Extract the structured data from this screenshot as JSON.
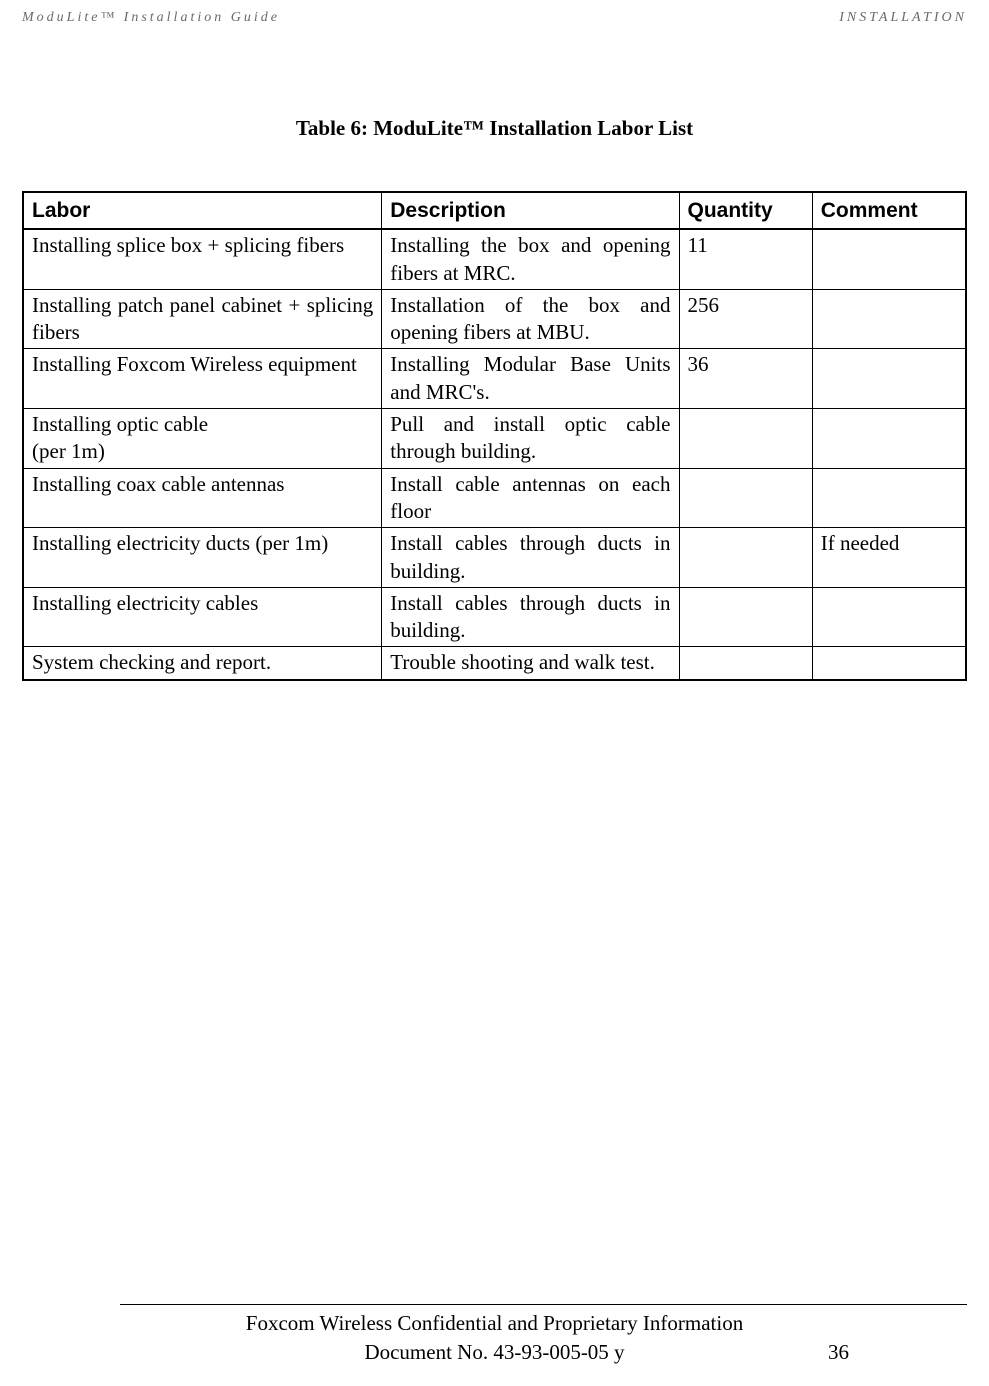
{
  "header": {
    "left": "ModuLite™ Installation Guide",
    "right": "INSTALLATION"
  },
  "caption": "Table 6: ModuLite™ Installation Labor List",
  "table": {
    "headers": {
      "labor": "Labor",
      "description": "Description",
      "quantity": "Quantity",
      "comment": "Comment"
    },
    "rows": [
      {
        "labor": "Installing splice box + splicing fibers",
        "description": "Installing the box and opening fibers at MRC.",
        "quantity": "11",
        "comment": ""
      },
      {
        "labor": "Installing patch panel cabinet + splicing fibers",
        "description": "Installation of the box and opening fibers at MBU.",
        "quantity": "256",
        "comment": ""
      },
      {
        "labor": "Installing Foxcom Wireless equipment",
        "description": "Installing Modular Base Units and  MRC's.",
        "quantity": "36",
        "comment": ""
      },
      {
        "labor": "Installing optic cable\n(per 1m)",
        "description": "Pull and install optic cable through building.",
        "quantity": "",
        "comment": ""
      },
      {
        "labor": "Installing coax cable antennas",
        "description": "Install cable antennas on each floor",
        "quantity": "",
        "comment": ""
      },
      {
        "labor": "Installing electricity ducts  (per 1m)",
        "description": "Install cables through ducts in building.",
        "quantity": "",
        "comment": "If needed"
      },
      {
        "labor": "Installing electricity cables",
        "description": "Install cables through ducts in building.",
        "quantity": "",
        "comment": ""
      },
      {
        "labor": "System checking and report.",
        "description": "Trouble shooting and walk test.",
        "quantity": "",
        "comment": ""
      }
    ]
  },
  "footer": {
    "line1": "Foxcom Wireless Confidential and Proprietary Information",
    "line2": "Document No. 43-93-005-05 y",
    "page": "36"
  }
}
